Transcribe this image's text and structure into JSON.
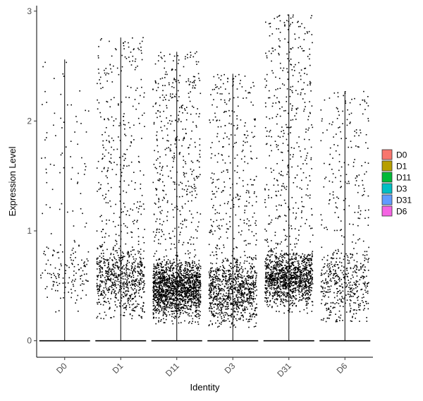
{
  "chart_data": {
    "type": "scatter",
    "subtype": "violin-jitter",
    "xlabel": "Identity",
    "ylabel": "Expression Level",
    "categories": [
      "D0",
      "D1",
      "D11",
      "D3",
      "D31",
      "D6"
    ],
    "ylim": [
      -0.15,
      3.05
    ],
    "yticks": [
      0,
      1,
      2,
      3
    ],
    "grid": false,
    "legend_position": "right",
    "legend": [
      {
        "name": "D0",
        "color": "#F8766D"
      },
      {
        "name": "D1",
        "color": "#B79F00"
      },
      {
        "name": "D11",
        "color": "#00BA38"
      },
      {
        "name": "D3",
        "color": "#00BFC4"
      },
      {
        "name": "D31",
        "color": "#619CFF"
      },
      {
        "name": "D6",
        "color": "#F564E3"
      }
    ],
    "series": [
      {
        "name": "D0",
        "max": 2.56,
        "n_expressed": 200,
        "bulk_low": 0.3,
        "bulk_high": 0.9,
        "bulk_frac": 0.5,
        "min_expr": 0.25
      },
      {
        "name": "D1",
        "max": 2.76,
        "n_expressed": 950,
        "bulk_low": 0.25,
        "bulk_high": 0.9,
        "bulk_frac": 0.55,
        "min_expr": 0.2
      },
      {
        "name": "D11",
        "max": 2.63,
        "n_expressed": 2000,
        "bulk_low": 0.2,
        "bulk_high": 0.75,
        "bulk_frac": 0.7,
        "min_expr": 0.15
      },
      {
        "name": "D3",
        "max": 2.43,
        "n_expressed": 1200,
        "bulk_low": 0.15,
        "bulk_high": 0.8,
        "bulk_frac": 0.6,
        "min_expr": 0.12
      },
      {
        "name": "D31",
        "max": 2.97,
        "n_expressed": 1600,
        "bulk_low": 0.3,
        "bulk_high": 0.85,
        "bulk_frac": 0.65,
        "min_expr": 0.25
      },
      {
        "name": "D6",
        "max": 2.27,
        "n_expressed": 600,
        "bulk_low": 0.2,
        "bulk_high": 0.9,
        "bulk_frac": 0.5,
        "min_expr": 0.17
      }
    ]
  }
}
